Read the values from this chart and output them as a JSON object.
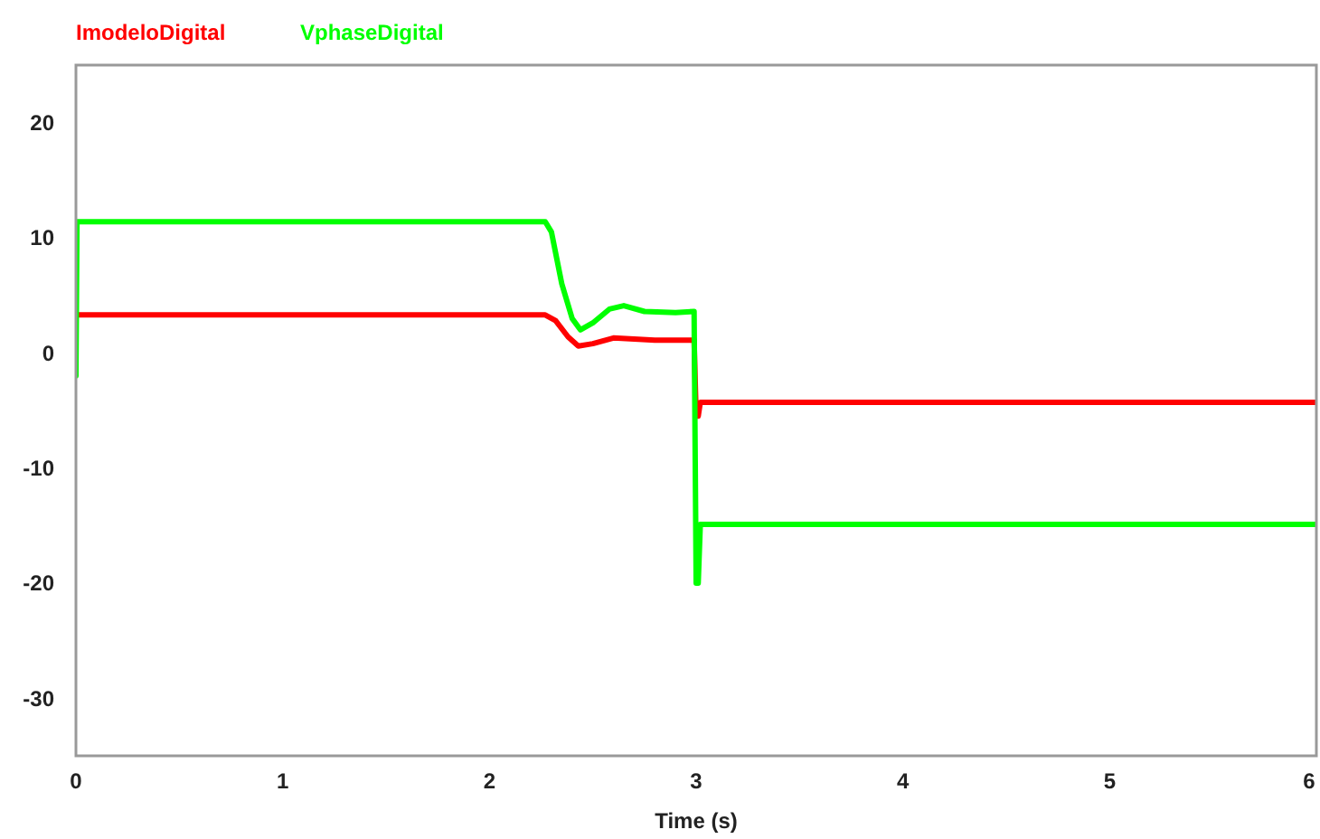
{
  "chart_data": {
    "type": "line",
    "xlabel": "Time (s)",
    "xlim": [
      0,
      6
    ],
    "xticks": [
      0,
      1,
      2,
      3,
      4,
      5,
      6
    ],
    "ylim": [
      -35,
      25
    ],
    "yticks": [
      -30,
      -20,
      -10,
      0,
      10,
      20
    ],
    "grid": false,
    "legend": "top left",
    "series": [
      {
        "name": "ImodeloDigital",
        "color": "#ff0000",
        "x": [
          0,
          0.01,
          2.27,
          2.32,
          2.38,
          2.43,
          2.5,
          2.6,
          2.8,
          2.99,
          3.0,
          3.01,
          3.02,
          6
        ],
        "values": [
          3.3,
          3.3,
          3.3,
          2.8,
          1.4,
          0.6,
          0.8,
          1.3,
          1.1,
          1.1,
          -5.5,
          -5.5,
          -4.3,
          -4.3
        ]
      },
      {
        "name": "VphaseDigital",
        "color": "#00ff00",
        "x": [
          0,
          0.005,
          0.01,
          2.27,
          2.3,
          2.35,
          2.4,
          2.44,
          2.5,
          2.58,
          2.65,
          2.75,
          2.9,
          2.99,
          3.0,
          3.01,
          3.02,
          6
        ],
        "values": [
          -2,
          11.4,
          11.4,
          11.4,
          10.5,
          6,
          3,
          2.0,
          2.6,
          3.8,
          4.1,
          3.6,
          3.5,
          3.6,
          -20,
          -20,
          -14.9,
          -14.9
        ]
      }
    ]
  }
}
